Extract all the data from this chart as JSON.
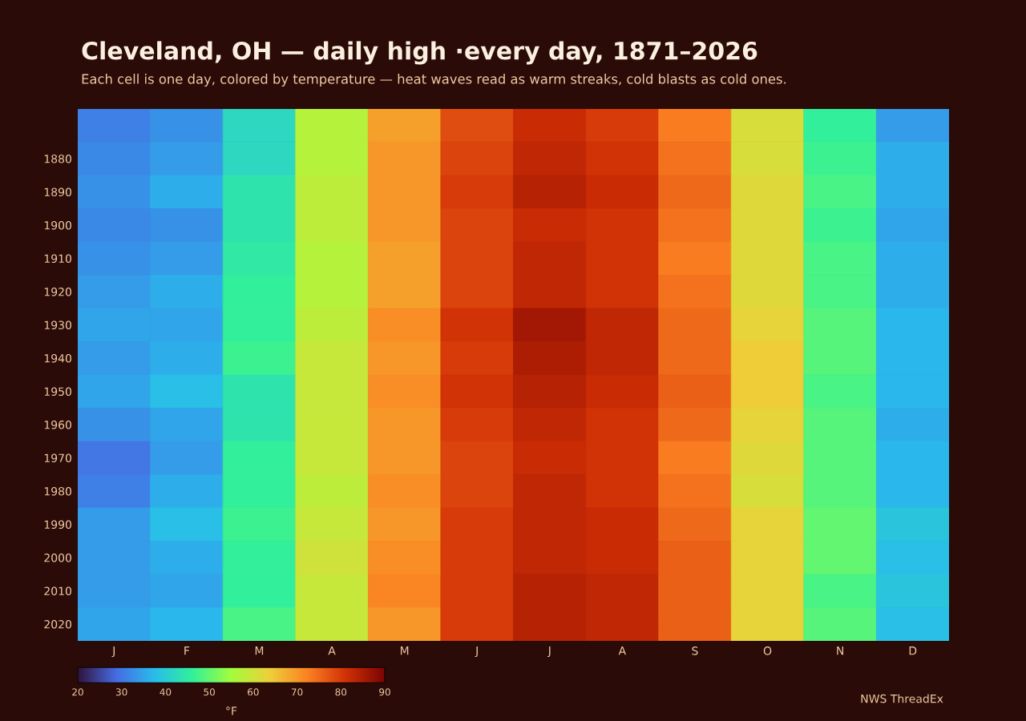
{
  "chart_data": {
    "type": "heatmap",
    "title": "Cleveland, OH — daily high ·every day, 1871–2026",
    "subtitle": "Each cell is one day, colored by temperature — heat waves read as warm streaks, cold blasts as cold ones.",
    "categories": [
      "J",
      "F",
      "M",
      "A",
      "M",
      "J",
      "J",
      "A",
      "S",
      "O",
      "N",
      "D"
    ],
    "y_categories": [
      null,
      "1880",
      "1890",
      "1900",
      "1910",
      "1920",
      "1930",
      "1940",
      "1950",
      "1960",
      "1970",
      "1980",
      "1990",
      "2000",
      "2010",
      "2020"
    ],
    "cells": [
      [
        31,
        33,
        42,
        57,
        69,
        78,
        82,
        80,
        73,
        61,
        46,
        34
      ],
      [
        32,
        34,
        42,
        57,
        70,
        79,
        83,
        81,
        74,
        61,
        47,
        36
      ],
      [
        33,
        36,
        44,
        58,
        70,
        80,
        84,
        82,
        75,
        62,
        48,
        36
      ],
      [
        32,
        33,
        44,
        58,
        70,
        79,
        82,
        81,
        74,
        62,
        47,
        35
      ],
      [
        33,
        34,
        45,
        57,
        69,
        79,
        83,
        81,
        73,
        62,
        48,
        36
      ],
      [
        34,
        36,
        46,
        57,
        69,
        79,
        83,
        81,
        74,
        62,
        48,
        36
      ],
      [
        35,
        35,
        46,
        58,
        71,
        81,
        86,
        83,
        75,
        63,
        49,
        37
      ],
      [
        34,
        36,
        47,
        59,
        70,
        80,
        85,
        83,
        75,
        64,
        49,
        37
      ],
      [
        35,
        38,
        44,
        59,
        71,
        81,
        84,
        82,
        76,
        64,
        48,
        37
      ],
      [
        33,
        35,
        44,
        59,
        70,
        80,
        83,
        81,
        75,
        63,
        49,
        36
      ],
      [
        30,
        34,
        46,
        59,
        70,
        79,
        82,
        81,
        73,
        62,
        49,
        37
      ],
      [
        31,
        36,
        46,
        58,
        71,
        79,
        83,
        81,
        74,
        61,
        49,
        37
      ],
      [
        34,
        38,
        47,
        59,
        70,
        80,
        83,
        82,
        75,
        63,
        50,
        39
      ],
      [
        34,
        36,
        46,
        60,
        71,
        80,
        83,
        82,
        76,
        63,
        50,
        38
      ],
      [
        34,
        35,
        46,
        59,
        72,
        80,
        84,
        83,
        76,
        63,
        48,
        39
      ],
      [
        35,
        37,
        48,
        59,
        70,
        80,
        84,
        83,
        76,
        63,
        49,
        38
      ]
    ],
    "clim": [
      20,
      90
    ],
    "cticks": [
      20,
      30,
      40,
      50,
      60,
      70,
      80,
      90
    ],
    "clabel": "°F",
    "annotations": [
      "NWS ThreadEx"
    ]
  }
}
